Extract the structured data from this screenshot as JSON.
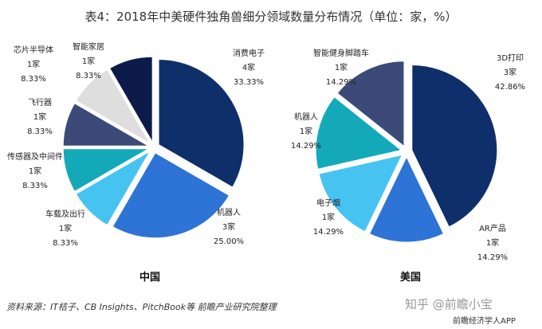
{
  "title": "表4：2018年中美硬件独角兽细分领域数量分布情况（单位：家，%）",
  "chart_data": [
    {
      "type": "pie",
      "region": "中国",
      "unit": "家",
      "slices": [
        {
          "name": "消费电子",
          "count": 4,
          "percent": 33.33,
          "count_label": "4家",
          "pct_label": "33.33%",
          "color": "#0f2f6b"
        },
        {
          "name": "机器人",
          "count": 3,
          "percent": 25.0,
          "count_label": "3家",
          "pct_label": "25.00%",
          "color": "#2e74d6"
        },
        {
          "name": "车载及出行",
          "count": 1,
          "percent": 8.33,
          "count_label": "1家",
          "pct_label": "8.33%",
          "color": "#47c3f2"
        },
        {
          "name": "传感器及中间件",
          "count": 1,
          "percent": 8.33,
          "count_label": "1家",
          "pct_label": "8.33%",
          "color": "#14a9b8"
        },
        {
          "name": "飞行器",
          "count": 1,
          "percent": 8.33,
          "count_label": "1家",
          "pct_label": "8.33%",
          "color": "#3b4a78"
        },
        {
          "name": "智能家居",
          "count": 1,
          "percent": 8.33,
          "count_label": "1家",
          "pct_label": "8.33%",
          "color": "#dedede"
        },
        {
          "name": "芯片半导体",
          "count": 1,
          "percent": 8.33,
          "count_label": "1家",
          "pct_label": "8.33%",
          "color": "#0d1b4a"
        }
      ]
    },
    {
      "type": "pie",
      "region": "美国",
      "unit": "家",
      "slices": [
        {
          "name": "3D打印",
          "count": 3,
          "percent": 42.86,
          "count_label": "3家",
          "pct_label": "42.86%",
          "color": "#0f2f6b"
        },
        {
          "name": "AR产品",
          "count": 1,
          "percent": 14.29,
          "count_label": "1家",
          "pct_label": "14.29%",
          "color": "#2e74d6"
        },
        {
          "name": "电子烟",
          "count": 1,
          "percent": 14.29,
          "count_label": "1家",
          "pct_label": "14.29%",
          "color": "#47c3f2"
        },
        {
          "name": "机器人",
          "count": 1,
          "percent": 14.29,
          "count_label": "1家",
          "pct_label": "14.29%",
          "color": "#14a9b8"
        },
        {
          "name": "智能健身脚踏车",
          "count": 1,
          "percent": 14.29,
          "count_label": "1家",
          "pct_label": "14.29%",
          "color": "#3b4a78"
        }
      ]
    }
  ],
  "source": "资料来源：IT桔子、CB Insights、PitchBook等 前瞻产业研究院整理",
  "watermark": "知乎 @前瞻小宝",
  "app_label": "前瞻经济学人APP"
}
